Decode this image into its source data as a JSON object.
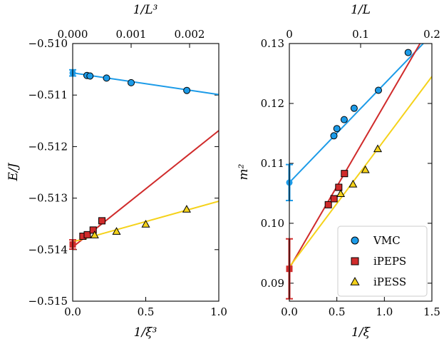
{
  "chart_data": [
    {
      "type": "scatter",
      "panel": "left",
      "xlabel": "1/ξ³",
      "ylabel": "E/J",
      "x2label": "1/L³",
      "xlim": [
        0,
        1.0
      ],
      "x2lim": [
        0,
        0.0025
      ],
      "ylim": [
        -0.515,
        -0.51
      ],
      "xticks": [
        {
          "v": 0.0,
          "label": "0.0"
        },
        {
          "v": 0.5,
          "label": "0.5"
        },
        {
          "v": 1.0,
          "label": "1.0"
        }
      ],
      "x2ticks": [
        {
          "v": 0.0,
          "label": "0.000"
        },
        {
          "v": 0.001,
          "label": "0.001"
        },
        {
          "v": 0.002,
          "label": "0.002"
        }
      ],
      "yticks": [
        {
          "v": -0.515,
          "label": "−0.515"
        },
        {
          "v": -0.514,
          "label": "−0.514"
        },
        {
          "v": -0.513,
          "label": "−0.513"
        },
        {
          "v": -0.512,
          "label": "−0.512"
        },
        {
          "v": -0.511,
          "label": "−0.511"
        },
        {
          "v": -0.51,
          "label": "−0.510"
        }
      ],
      "series": [
        {
          "name": "VMC",
          "axis": "x2",
          "color": "#1c9be8",
          "marker": "circle",
          "points": [
            [
              0.000244,
              -0.51062
            ],
            [
              0.000296,
              -0.51063
            ],
            [
              0.000579,
              -0.51067
            ],
            [
              0.001,
              -0.51076
            ],
            [
              0.001953,
              -0.51091
            ]
          ],
          "fit": [
            [
              0.0,
              -0.51057
            ],
            [
              0.0025,
              -0.51099
            ]
          ],
          "extrapolated": {
            "x": 0.0,
            "y": -0.51057,
            "err": 6e-05
          }
        },
        {
          "name": "iPEPS",
          "axis": "x",
          "color": "#d02b2b",
          "marker": "square",
          "points": [
            [
              0.07,
              -0.51374
            ],
            [
              0.1,
              -0.51371
            ],
            [
              0.14,
              -0.51362
            ],
            [
              0.2,
              -0.51344
            ]
          ],
          "fit": [
            [
              0.0,
              -0.51395
            ],
            [
              1.0,
              -0.51169
            ]
          ],
          "extrapolated": {
            "x": 0.0,
            "y": -0.5139,
            "err": 9e-05
          }
        },
        {
          "name": "iPESS",
          "axis": "x",
          "color": "#f5d21a",
          "marker": "triangle",
          "points": [
            [
              0.15,
              -0.51372
            ],
            [
              0.3,
              -0.51365
            ],
            [
              0.5,
              -0.51351
            ],
            [
              0.78,
              -0.51322
            ]
          ],
          "fit": [
            [
              0.0,
              -0.51385
            ],
            [
              1.0,
              -0.51306
            ]
          ]
        }
      ]
    },
    {
      "type": "scatter",
      "panel": "right",
      "xlabel": "1/ξ",
      "ylabel": "m²",
      "x2label": "1/L",
      "xlim": [
        0,
        1.5
      ],
      "x2lim": [
        0,
        0.2
      ],
      "ylim": [
        0.087,
        0.13
      ],
      "xticks": [
        {
          "v": 0.0,
          "label": "0.0"
        },
        {
          "v": 0.5,
          "label": "0.5"
        },
        {
          "v": 1.0,
          "label": "1.0"
        },
        {
          "v": 1.5,
          "label": "1.5"
        }
      ],
      "x2ticks": [
        {
          "v": 0.0,
          "label": "0"
        },
        {
          "v": 0.1,
          "label": "0.1"
        },
        {
          "v": 0.2,
          "label": "0.2"
        }
      ],
      "yticks": [
        {
          "v": 0.09,
          "label": "0.09"
        },
        {
          "v": 0.1,
          "label": "0.10"
        },
        {
          "v": 0.11,
          "label": "0.11"
        },
        {
          "v": 0.12,
          "label": "0.12"
        },
        {
          "v": 0.13,
          "label": "0.13"
        }
      ],
      "series": [
        {
          "name": "VMC",
          "axis": "x2",
          "color": "#1c9be8",
          "marker": "circle",
          "points": [
            [
              0.0625,
              0.1146
            ],
            [
              0.0667,
              0.1158
            ],
            [
              0.0769,
              0.1173
            ],
            [
              0.0909,
              0.1192
            ],
            [
              0.125,
              0.1222
            ],
            [
              0.1667,
              0.1285
            ]
          ],
          "fit": [
            [
              0.0,
              0.1068
            ],
            [
              0.2,
              0.1315
            ]
          ],
          "extrapolated": {
            "x": 0.0,
            "y": 0.1068,
            "err": 0.003
          }
        },
        {
          "name": "iPEPS",
          "axis": "x",
          "color": "#d02b2b",
          "marker": "square",
          "points": [
            [
              0.41,
              0.1031
            ],
            [
              0.47,
              0.1041
            ],
            [
              0.52,
              0.106
            ],
            [
              0.58,
              0.1083
            ]
          ],
          "fit": [
            [
              0.0,
              0.0925
            ],
            [
              1.5,
              0.1334
            ]
          ],
          "extrapolated": {
            "x": 0.0,
            "y": 0.0924,
            "err": 0.005
          }
        },
        {
          "name": "iPESS",
          "axis": "x",
          "color": "#f5d21a",
          "marker": "triangle",
          "points": [
            [
              0.54,
              0.1049
            ],
            [
              0.67,
              0.1065
            ],
            [
              0.8,
              0.1089
            ],
            [
              0.93,
              0.1124
            ]
          ],
          "fit": [
            [
              0.0,
              0.0927
            ],
            [
              1.5,
              0.1245
            ]
          ]
        }
      ],
      "legend": {
        "position": "lower-right",
        "entries": [
          {
            "name": "VMC",
            "color": "#1c9be8",
            "marker": "circle"
          },
          {
            "name": "iPEPS",
            "color": "#d02b2b",
            "marker": "square"
          },
          {
            "name": "iPESS",
            "color": "#f5d21a",
            "marker": "triangle"
          }
        ]
      }
    }
  ]
}
